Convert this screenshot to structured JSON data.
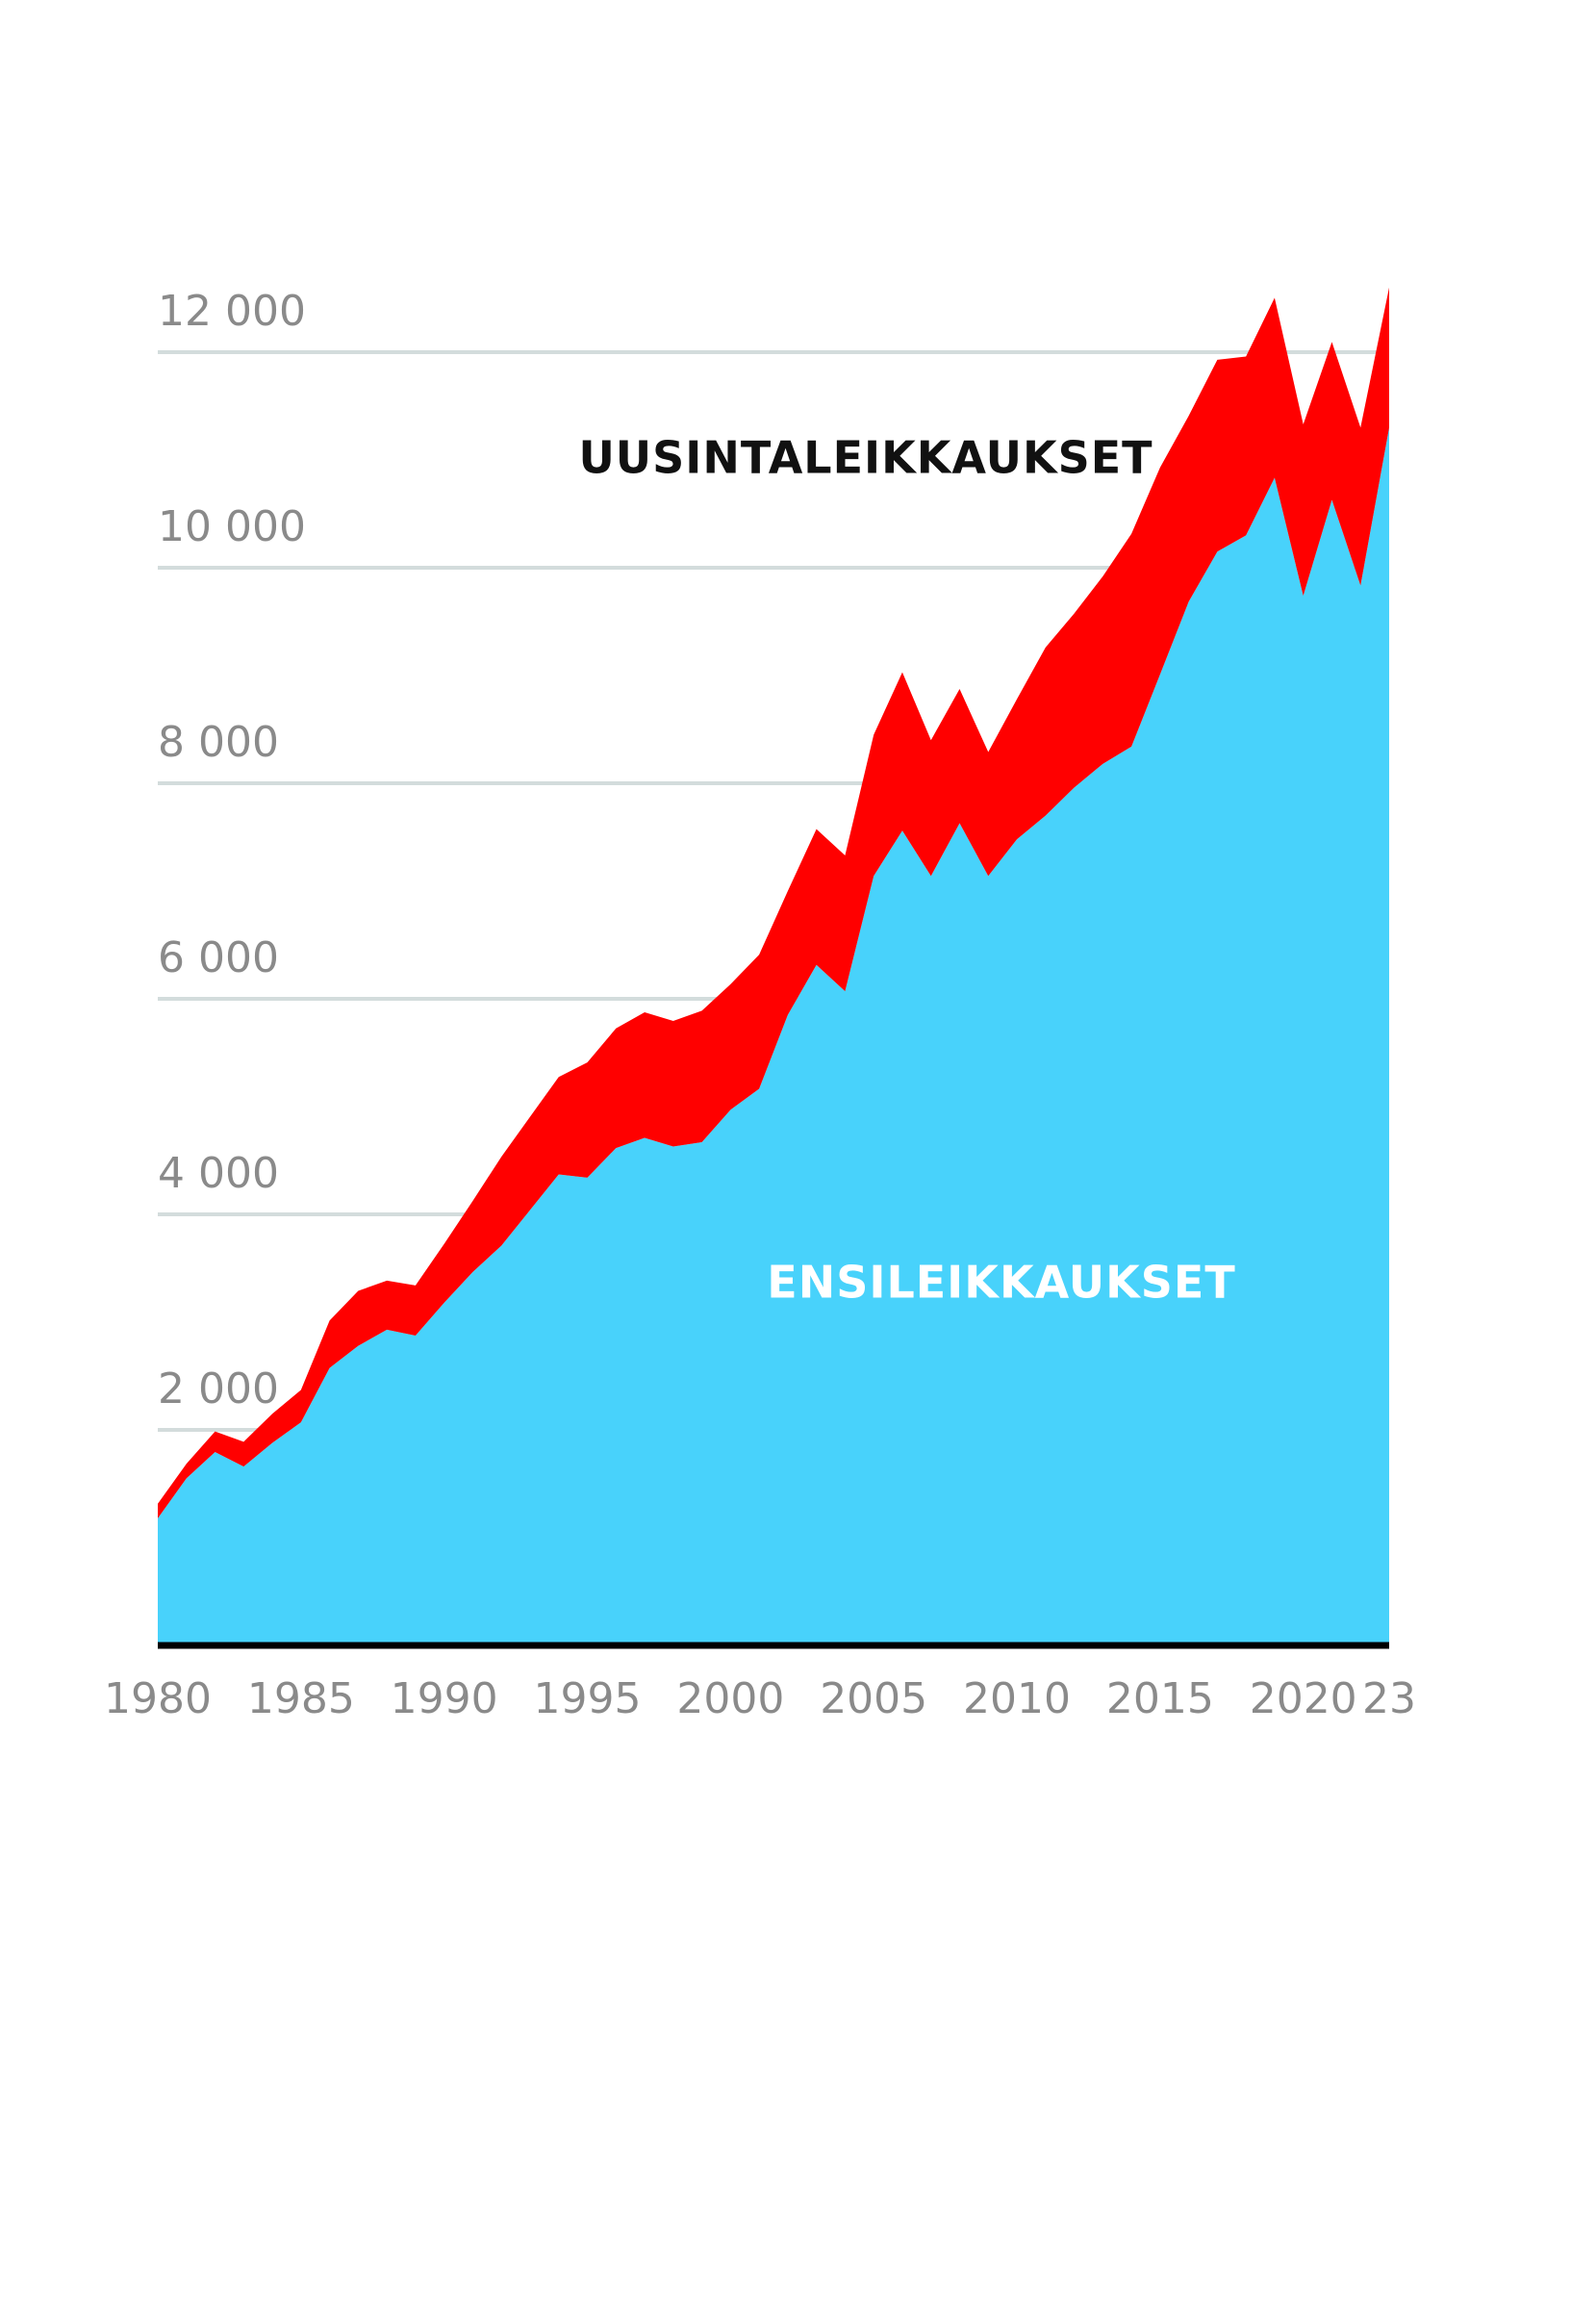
{
  "chart_data": {
    "type": "stacked_area",
    "x": [
      1980,
      1981,
      1982,
      1983,
      1984,
      1985,
      1986,
      1987,
      1988,
      1989,
      1990,
      1991,
      1992,
      1993,
      1994,
      1995,
      1996,
      1997,
      1998,
      1999,
      2000,
      2001,
      2002,
      2003,
      2004,
      2005,
      2006,
      2007,
      2008,
      2009,
      2010,
      2011,
      2012,
      2013,
      2014,
      2015,
      2016,
      2017,
      2018,
      2019,
      2020,
      2021,
      2022,
      2023
    ],
    "series": [
      {
        "name": "ENSILEIKKAUKSET",
        "color": "#48d2fb",
        "values": [
          1180,
          1550,
          1795,
          1660,
          1880,
          2070,
          2575,
          2780,
          2930,
          2875,
          3180,
          3465,
          3710,
          4040,
          4370,
          4340,
          4615,
          4710,
          4630,
          4670,
          4970,
          5165,
          5850,
          6315,
          6070,
          7140,
          7560,
          7140,
          7630,
          7140,
          7480,
          7700,
          7960,
          8180,
          8340,
          9010,
          9685,
          10150,
          10300,
          10835,
          9740,
          10630,
          9835,
          11300
        ]
      },
      {
        "name": "UUSINTALEIKKAUKSET",
        "color": "#ff0000",
        "values": [
          135,
          135,
          190,
          230,
          270,
          300,
          440,
          510,
          455,
          465,
          545,
          660,
          825,
          865,
          905,
          1070,
          1110,
          1165,
          1165,
          1220,
          1165,
          1245,
          1150,
          1260,
          1260,
          1310,
          1470,
          1260,
          1245,
          1150,
          1300,
          1560,
          1615,
          1740,
          1975,
          1920,
          1725,
          1780,
          1660,
          1670,
          1590,
          1465,
          1465,
          1300
        ]
      }
    ],
    "xlim": [
      1980,
      2023
    ],
    "xticks": [
      1980,
      1985,
      1990,
      1995,
      2000,
      2005,
      2010,
      2015,
      2020,
      {
        "value": 2023,
        "label": "23"
      }
    ],
    "ylim": [
      0,
      13000
    ],
    "yticks": [
      {
        "value": 2000,
        "label": "2 000"
      },
      {
        "value": 4000,
        "label": "4 000"
      },
      {
        "value": 6000,
        "label": "6 000"
      },
      {
        "value": 8000,
        "label": "8 000"
      },
      {
        "value": 10000,
        "label": "10 000"
      },
      {
        "value": 12000,
        "label": "12 000"
      }
    ],
    "grid": true
  }
}
